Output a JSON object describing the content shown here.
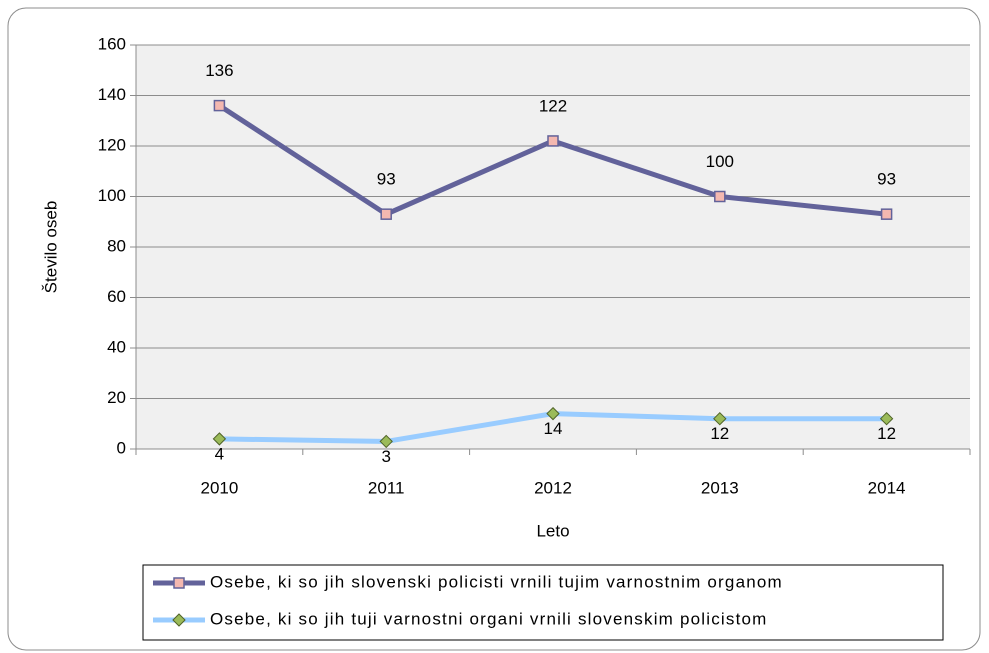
{
  "chart_data": {
    "type": "line",
    "x_label": "Leto",
    "y_label": "Število oseb",
    "categories": [
      "2010",
      "2011",
      "2012",
      "2013",
      "2014"
    ],
    "series": [
      {
        "name": "Osebe, ki so jih slovenski policisti vrnili tujim varnostnim organom",
        "color": "#62629a",
        "marker": "square",
        "marker_color": "#f4b8b0",
        "label_position": "above",
        "values": [
          136,
          93,
          122,
          100,
          93
        ]
      },
      {
        "name": "Osebe, ki so jih tuji varnostni organi vrnili slovenskim policistom",
        "color": "#99ccff",
        "marker": "diamond",
        "marker_color": "#9bbb59",
        "label_position": "below",
        "values": [
          4,
          3,
          14,
          12,
          12
        ]
      }
    ],
    "ylim": [
      0,
      160
    ],
    "yticks": [
      0,
      20,
      40,
      60,
      80,
      100,
      120,
      140,
      160
    ],
    "grid": true,
    "plot_background": "#f0f0f0",
    "legend": "bottom"
  }
}
